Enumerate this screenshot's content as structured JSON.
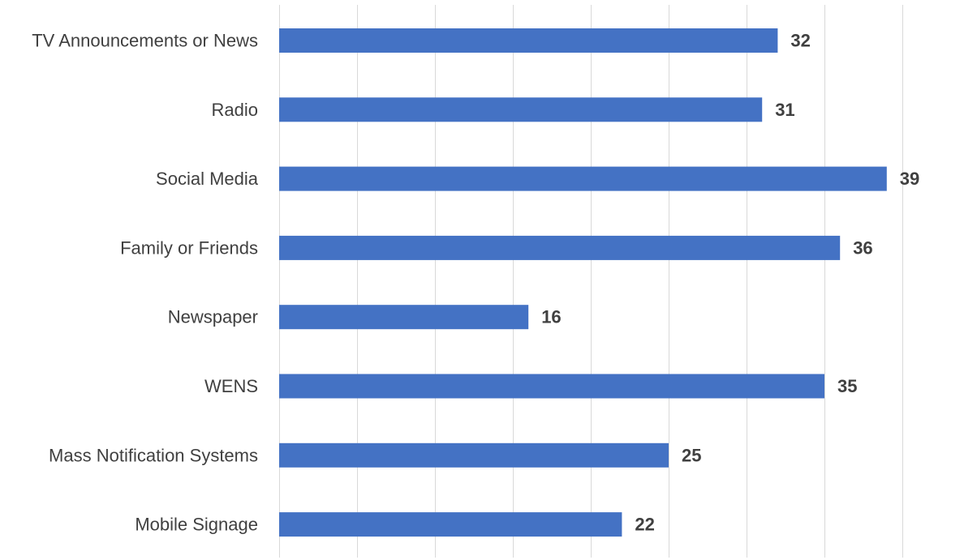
{
  "chart_data": {
    "type": "bar",
    "orientation": "horizontal",
    "title": "",
    "xlabel": "",
    "ylabel": "",
    "categories": [
      "TV Announcements or News",
      "Radio",
      "Social Media",
      "Family or Friends",
      "Newspaper",
      "WENS",
      "Mass Notification Systems",
      "Mobile Signage"
    ],
    "values": [
      32,
      31,
      39,
      36,
      16,
      35,
      25,
      22
    ],
    "xlim": [
      0,
      40
    ],
    "x_tick_step": 5,
    "grid": "vertical",
    "legend": "none",
    "bar_color": "#4472c4",
    "data_labels": true
  }
}
